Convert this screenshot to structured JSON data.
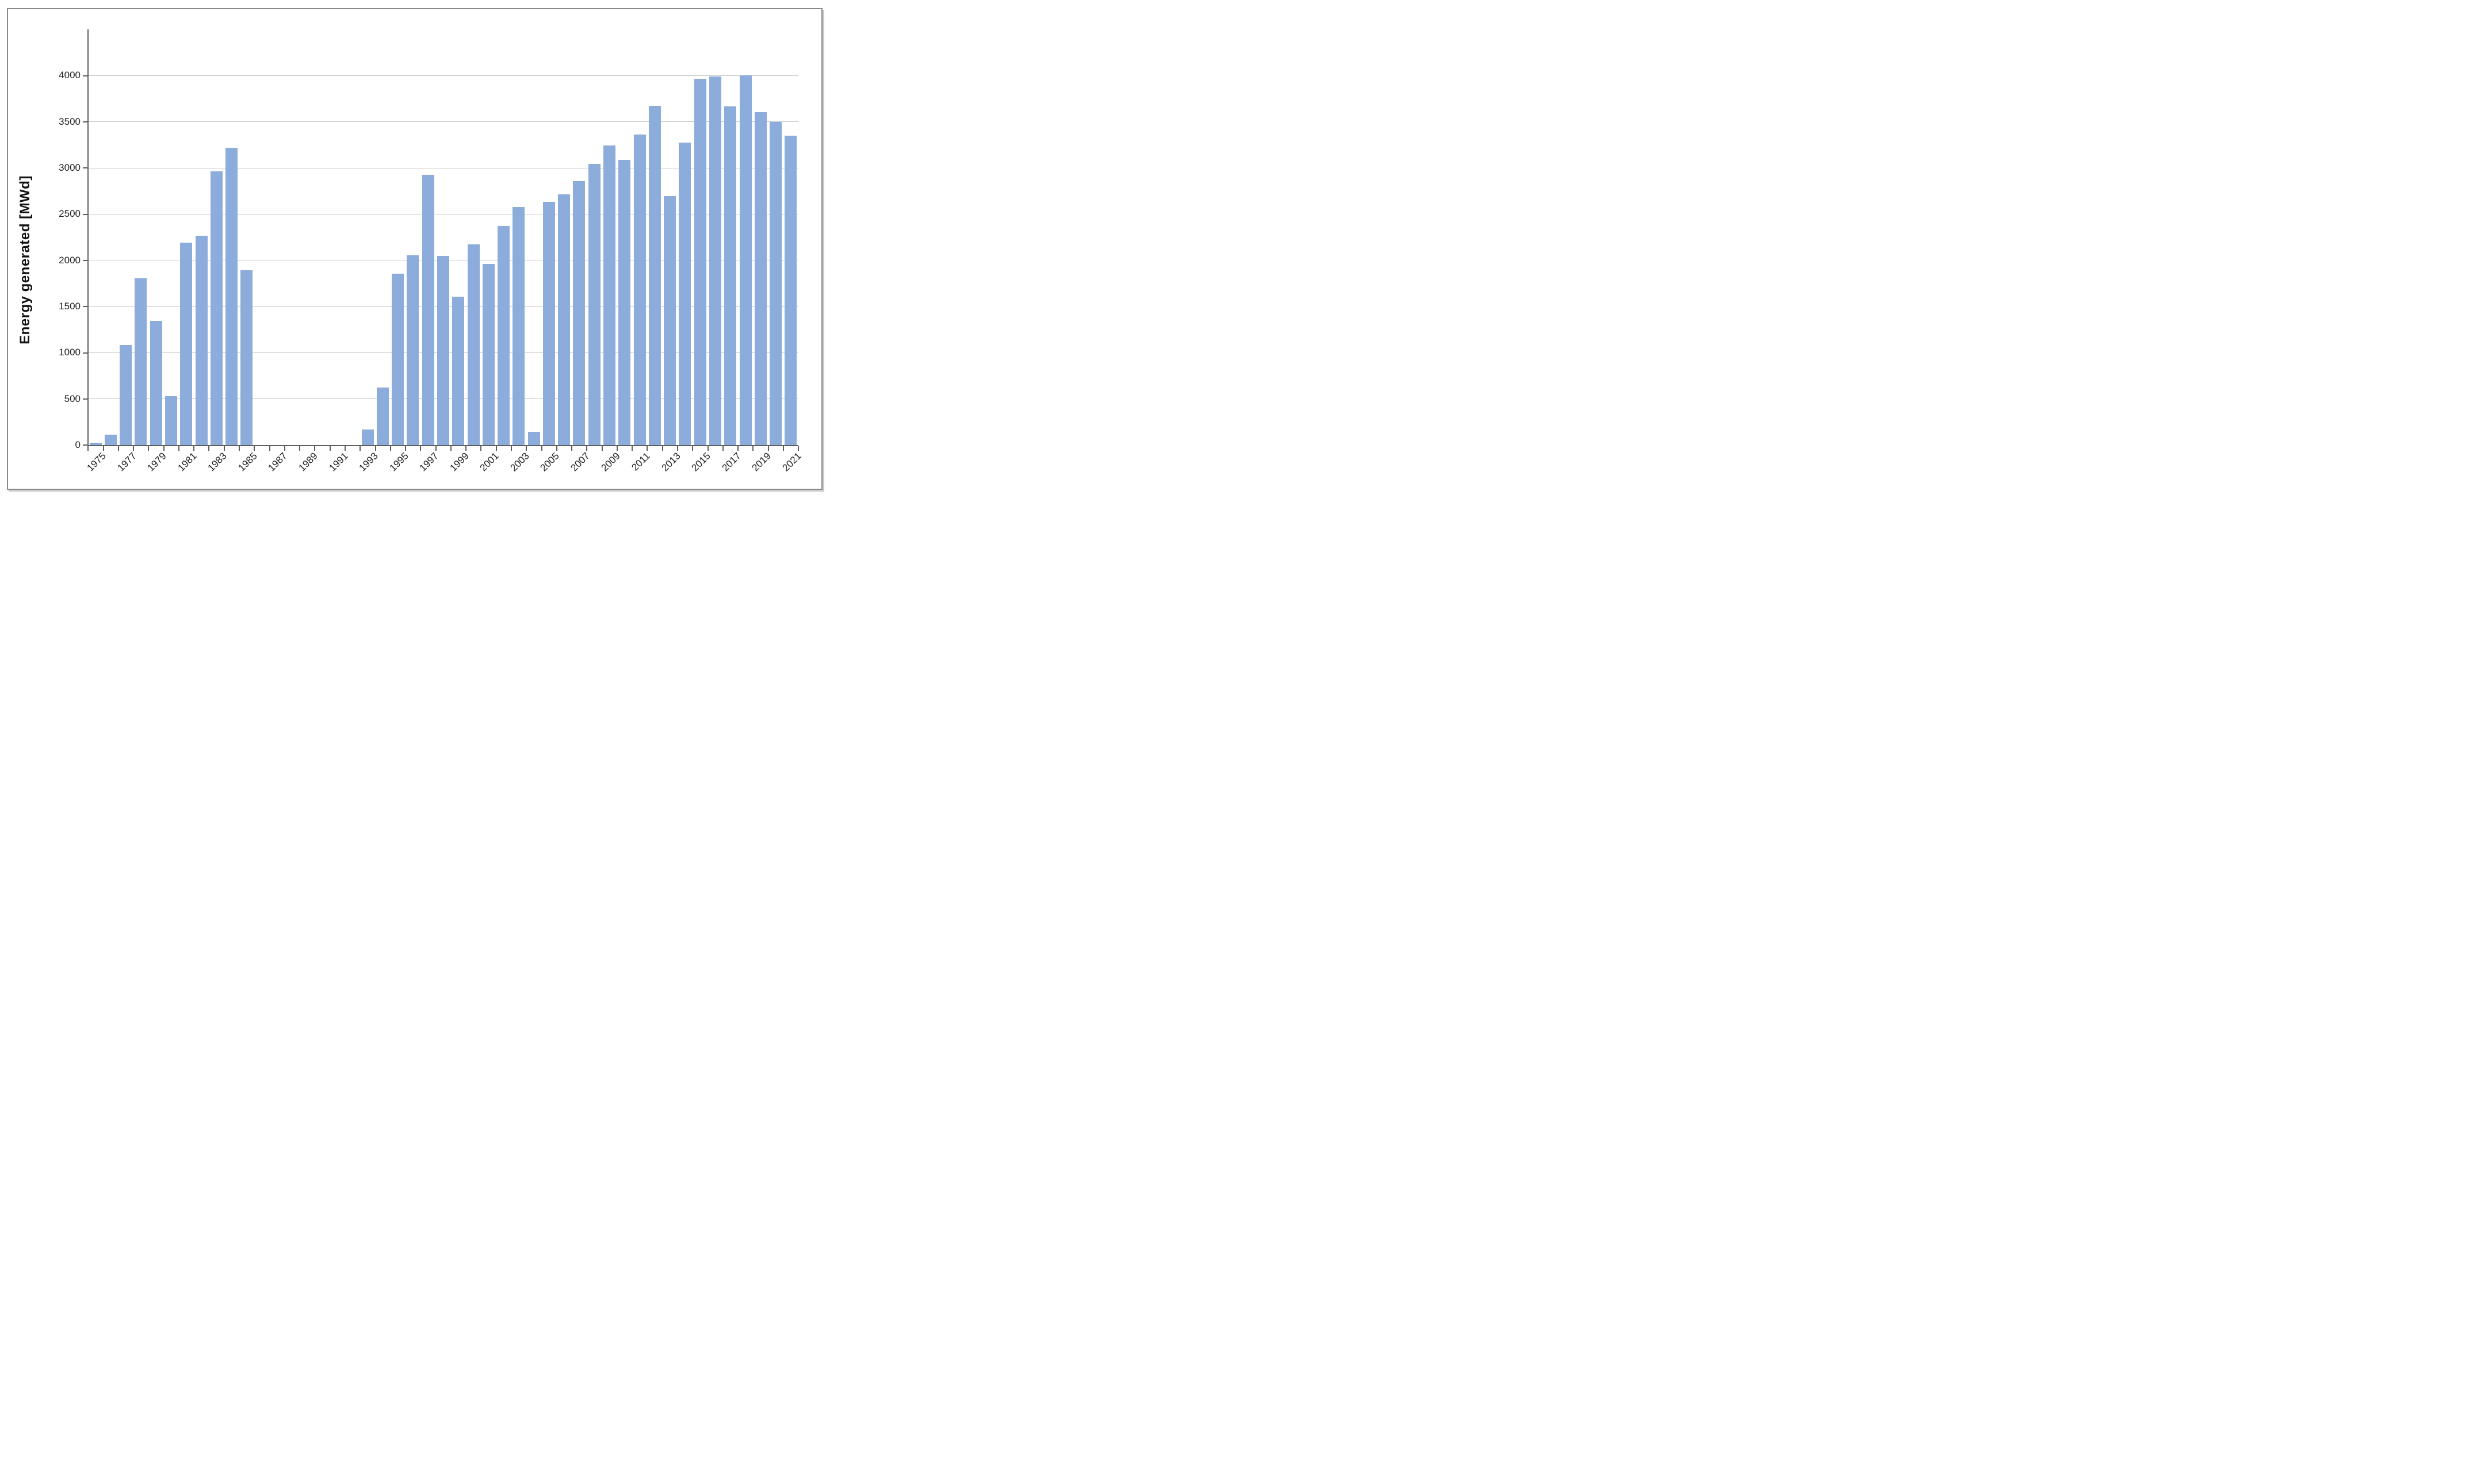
{
  "figure": {
    "background": "#ffffff",
    "frame_border_color": "#8a8a8a"
  },
  "chart_data": {
    "type": "bar",
    "title": "",
    "xlabel": "",
    "ylabel": "Energy generated [MWd]",
    "legend": "none",
    "grid": "horizontal",
    "ylim": [
      0,
      4500
    ],
    "y_major_step": 500,
    "y_tick_labels": [
      "0",
      "500",
      "1000",
      "1500",
      "2000",
      "2500",
      "3000",
      "3500",
      "4000"
    ],
    "x_tick_labels": [
      "1975",
      "1977",
      "1979",
      "1981",
      "1983",
      "1985",
      "1987",
      "1989",
      "1991",
      "1993",
      "1995",
      "1997",
      "1999",
      "2001",
      "2003",
      "2005",
      "2007",
      "2009",
      "2011",
      "2013",
      "2015",
      "2017",
      "2019",
      "2021"
    ],
    "categories": [
      1975,
      1976,
      1977,
      1978,
      1979,
      1980,
      1981,
      1982,
      1983,
      1984,
      1985,
      1986,
      1987,
      1988,
      1989,
      1990,
      1991,
      1992,
      1993,
      1994,
      1995,
      1996,
      1997,
      1998,
      1999,
      2000,
      2001,
      2002,
      2003,
      2004,
      2005,
      2006,
      2007,
      2008,
      2009,
      2010,
      2011,
      2012,
      2013,
      2014,
      2015,
      2016,
      2017,
      2018,
      2019,
      2020,
      2021
    ],
    "values": [
      25,
      115,
      1085,
      1805,
      1345,
      530,
      2190,
      2265,
      2965,
      3215,
      1890,
      null,
      null,
      null,
      null,
      null,
      null,
      null,
      165,
      625,
      1855,
      2055,
      2925,
      2045,
      1605,
      2175,
      1960,
      2370,
      2575,
      145,
      2630,
      2715,
      2855,
      3045,
      3240,
      3090,
      3360,
      3670,
      2695,
      3275,
      3965,
      3990,
      3665,
      4005,
      3605,
      3500,
      3350
    ],
    "bar_color": "#8cacdb",
    "gridline_color": "#c9c9c9",
    "axis_color": "#5f5f5f",
    "text_color": "#1f1f1f"
  }
}
